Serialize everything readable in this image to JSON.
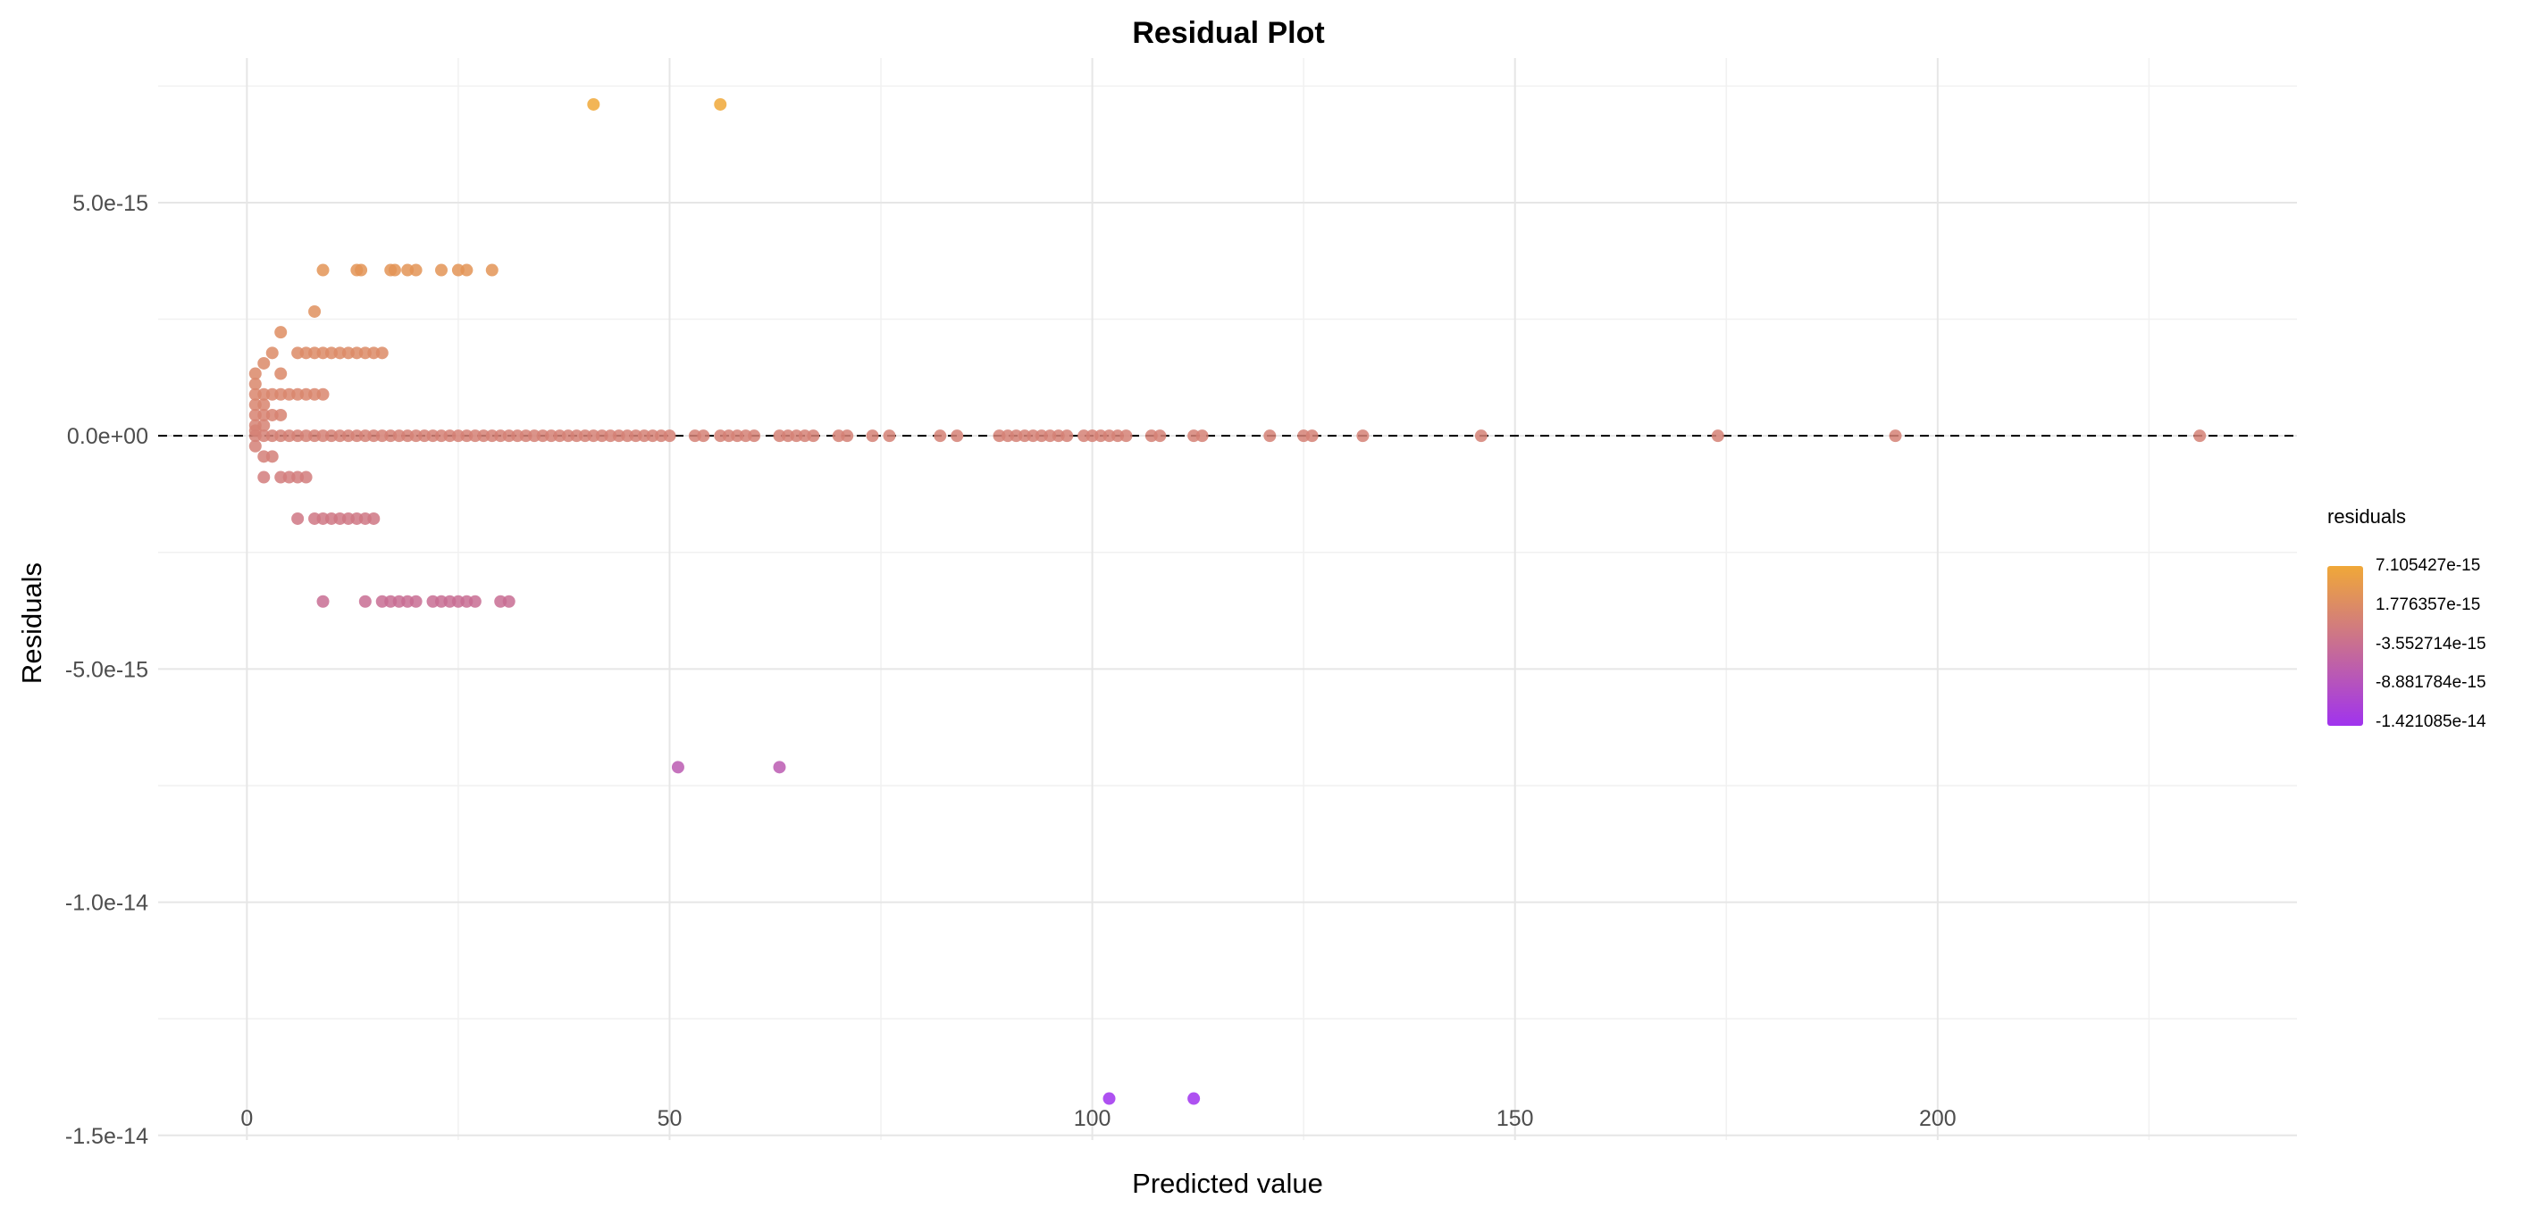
{
  "chart_data": {
    "type": "scatter",
    "title": "Residual Plot",
    "xlabel": "Predicted value",
    "ylabel": "Residuals",
    "xlim": [
      -10.5,
      242.5
    ],
    "ylim": [
      -1.51e-14,
      8.1e-15
    ],
    "x_ticks": [
      0,
      50,
      100,
      150,
      200
    ],
    "x_tick_labels": [
      "0",
      "50",
      "100",
      "150",
      "200"
    ],
    "y_ticks": [
      5e-15,
      0,
      -5e-15,
      -1e-14,
      -1.5e-14
    ],
    "y_tick_labels": [
      "5.0e-15",
      "0.0e+00",
      "-5.0e-15",
      "-1.0e-14",
      "-1.5e-14"
    ],
    "grid": true,
    "reference_line": {
      "y": 0,
      "style": "dashed",
      "color": "#000000"
    },
    "color_scale": {
      "title": "residuals",
      "low_color": "#a033ee",
      "high_color": "#f0a838",
      "breaks": [
        "7.105427e-15",
        "1.776357e-15",
        "-3.552714e-15",
        "-8.881784e-15",
        "-1.421085e-14"
      ],
      "range": [
        -1.421085e-14,
        7.105427e-15
      ]
    },
    "legend_position": "right",
    "series": [
      {
        "points": [
          [
            41,
            7.105427e-15
          ],
          [
            56,
            7.105427e-15
          ],
          [
            9,
            3.552714e-15
          ],
          [
            13,
            3.552714e-15
          ],
          [
            13.5,
            3.552714e-15
          ],
          [
            17,
            3.552714e-15
          ],
          [
            17.5,
            3.552714e-15
          ],
          [
            19,
            3.552714e-15
          ],
          [
            20,
            3.552714e-15
          ],
          [
            23,
            3.552714e-15
          ],
          [
            25,
            3.552714e-15
          ],
          [
            26,
            3.552714e-15
          ],
          [
            29,
            3.552714e-15
          ],
          [
            8,
            2.664535e-15
          ],
          [
            4,
            2.220446e-15
          ],
          [
            2,
            1.554312e-15
          ],
          [
            3,
            1.776357e-15
          ],
          [
            6,
            1.776357e-15
          ],
          [
            7,
            1.776357e-15
          ],
          [
            8,
            1.776357e-15
          ],
          [
            9,
            1.776357e-15
          ],
          [
            10,
            1.776357e-15
          ],
          [
            11,
            1.776357e-15
          ],
          [
            12,
            1.776357e-15
          ],
          [
            13,
            1.776357e-15
          ],
          [
            14,
            1.776357e-15
          ],
          [
            15,
            1.776357e-15
          ],
          [
            16,
            1.776357e-15
          ],
          [
            1,
            1.332268e-15
          ],
          [
            4,
            1.332268e-15
          ],
          [
            1,
            1.110223e-15
          ],
          [
            1,
            8.881784e-16
          ],
          [
            2,
            8.881784e-16
          ],
          [
            3,
            8.881784e-16
          ],
          [
            4,
            8.881784e-16
          ],
          [
            5,
            8.881784e-16
          ],
          [
            6,
            8.881784e-16
          ],
          [
            7,
            8.881784e-16
          ],
          [
            8,
            8.881784e-16
          ],
          [
            9,
            8.881784e-16
          ],
          [
            1,
            6.661338e-16
          ],
          [
            2,
            6.661338e-16
          ],
          [
            1,
            4.440892e-16
          ],
          [
            2,
            4.440892e-16
          ],
          [
            3,
            4.440892e-16
          ],
          [
            4,
            4.440892e-16
          ],
          [
            1,
            2.220446e-16
          ],
          [
            2,
            2.220446e-16
          ],
          [
            1,
            1.110223e-16
          ],
          [
            1,
            0
          ],
          [
            2,
            0
          ],
          [
            3,
            0
          ],
          [
            4,
            0
          ],
          [
            5,
            0
          ],
          [
            6,
            0
          ],
          [
            7,
            0
          ],
          [
            8,
            0
          ],
          [
            9,
            0
          ],
          [
            10,
            0
          ],
          [
            11,
            0
          ],
          [
            12,
            0
          ],
          [
            13,
            0
          ],
          [
            14,
            0
          ],
          [
            15,
            0
          ],
          [
            16,
            0
          ],
          [
            17,
            0
          ],
          [
            18,
            0
          ],
          [
            19,
            0
          ],
          [
            20,
            0
          ],
          [
            21,
            0
          ],
          [
            22,
            0
          ],
          [
            23,
            0
          ],
          [
            24,
            0
          ],
          [
            25,
            0
          ],
          [
            26,
            0
          ],
          [
            27,
            0
          ],
          [
            28,
            0
          ],
          [
            29,
            0
          ],
          [
            30,
            0
          ],
          [
            31,
            0
          ],
          [
            32,
            0
          ],
          [
            33,
            0
          ],
          [
            34,
            0
          ],
          [
            35,
            0
          ],
          [
            36,
            0
          ],
          [
            37,
            0
          ],
          [
            38,
            0
          ],
          [
            39,
            0
          ],
          [
            40,
            0
          ],
          [
            41,
            0
          ],
          [
            42,
            0
          ],
          [
            43,
            0
          ],
          [
            44,
            0
          ],
          [
            45,
            0
          ],
          [
            46,
            0
          ],
          [
            47,
            0
          ],
          [
            48,
            0
          ],
          [
            49,
            0
          ],
          [
            50,
            0
          ],
          [
            53,
            0
          ],
          [
            54,
            0
          ],
          [
            56,
            0
          ],
          [
            57,
            0
          ],
          [
            58,
            0
          ],
          [
            59,
            0
          ],
          [
            60,
            0
          ],
          [
            63,
            0
          ],
          [
            64,
            0
          ],
          [
            65,
            0
          ],
          [
            66,
            0
          ],
          [
            67,
            0
          ],
          [
            70,
            0
          ],
          [
            71,
            0
          ],
          [
            74,
            0
          ],
          [
            76,
            0
          ],
          [
            82,
            0
          ],
          [
            84,
            0
          ],
          [
            89,
            0
          ],
          [
            90,
            0
          ],
          [
            91,
            0
          ],
          [
            92,
            0
          ],
          [
            93,
            0
          ],
          [
            94,
            0
          ],
          [
            95,
            0
          ],
          [
            96,
            0
          ],
          [
            97,
            0
          ],
          [
            99,
            0
          ],
          [
            100,
            0
          ],
          [
            101,
            0
          ],
          [
            102,
            0
          ],
          [
            103,
            0
          ],
          [
            104,
            0
          ],
          [
            107,
            0
          ],
          [
            108,
            0
          ],
          [
            112,
            0
          ],
          [
            113,
            0
          ],
          [
            121,
            0
          ],
          [
            125,
            0
          ],
          [
            126,
            0
          ],
          [
            132,
            0
          ],
          [
            146,
            0
          ],
          [
            174,
            0
          ],
          [
            195,
            0
          ],
          [
            231,
            0
          ],
          [
            1,
            -2.220446e-16
          ],
          [
            2,
            -4.440892e-16
          ],
          [
            3,
            -4.440892e-16
          ],
          [
            2,
            -8.881784e-16
          ],
          [
            4,
            -8.881784e-16
          ],
          [
            5,
            -8.881784e-16
          ],
          [
            6,
            -8.881784e-16
          ],
          [
            7,
            -8.881784e-16
          ],
          [
            6,
            -1.776357e-15
          ],
          [
            8,
            -1.776357e-15
          ],
          [
            9,
            -1.776357e-15
          ],
          [
            10,
            -1.776357e-15
          ],
          [
            11,
            -1.776357e-15
          ],
          [
            12,
            -1.776357e-15
          ],
          [
            13,
            -1.776357e-15
          ],
          [
            14,
            -1.776357e-15
          ],
          [
            15,
            -1.776357e-15
          ],
          [
            9,
            -3.552714e-15
          ],
          [
            14,
            -3.552714e-15
          ],
          [
            16,
            -3.552714e-15
          ],
          [
            17,
            -3.552714e-15
          ],
          [
            18,
            -3.552714e-15
          ],
          [
            19,
            -3.552714e-15
          ],
          [
            20,
            -3.552714e-15
          ],
          [
            22,
            -3.552714e-15
          ],
          [
            23,
            -3.552714e-15
          ],
          [
            24,
            -3.552714e-15
          ],
          [
            25,
            -3.552714e-15
          ],
          [
            26,
            -3.552714e-15
          ],
          [
            27,
            -3.552714e-15
          ],
          [
            30,
            -3.552714e-15
          ],
          [
            31,
            -3.552714e-15
          ],
          [
            51,
            -7.105427e-15
          ],
          [
            63,
            -7.105427e-15
          ],
          [
            102,
            -1.421085e-14
          ],
          [
            112,
            -1.421085e-14
          ]
        ]
      }
    ]
  }
}
